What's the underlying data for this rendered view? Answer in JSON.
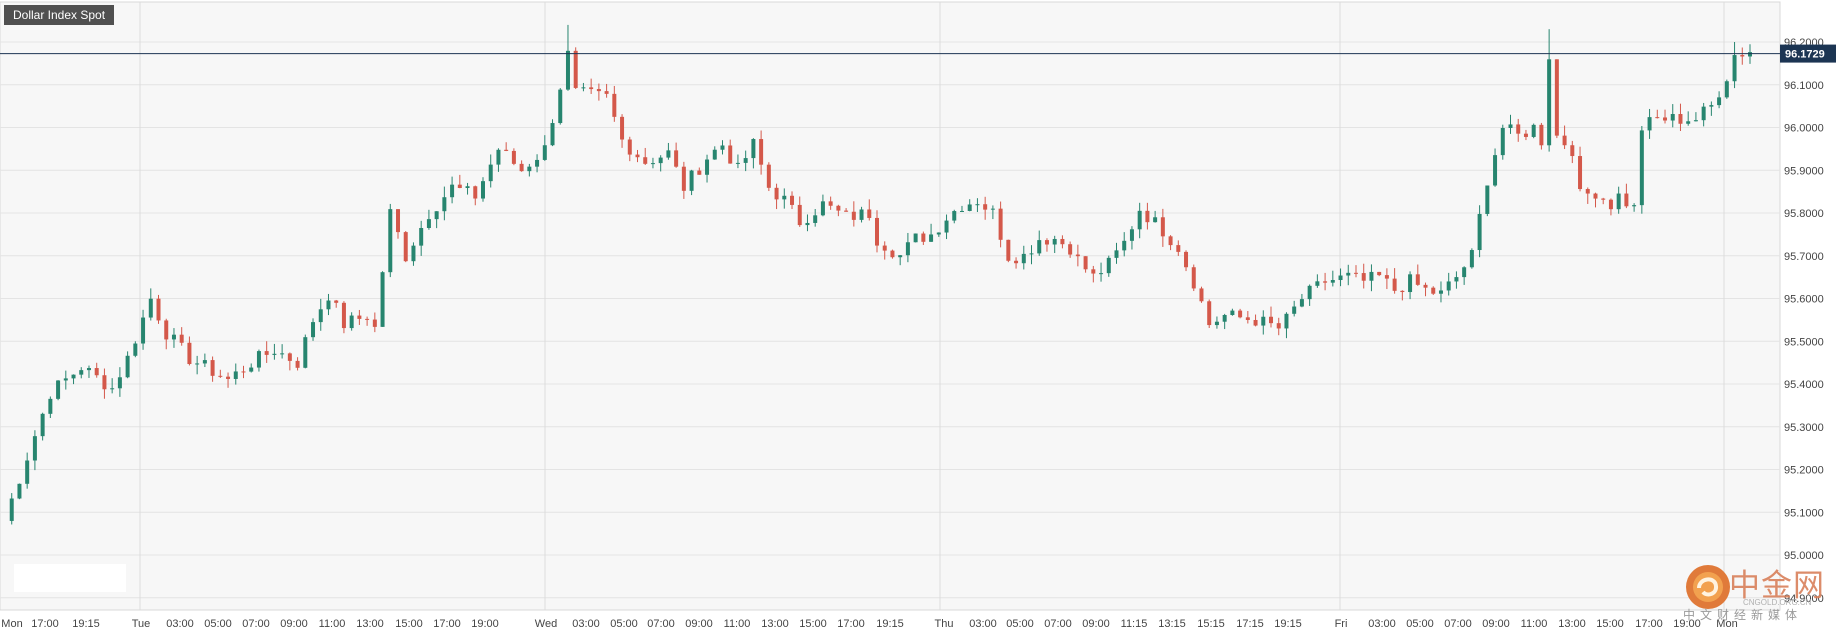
{
  "title": "Dollar Index Spot",
  "last_price_label": "96.1729",
  "watermark": {
    "name": "中金网",
    "sub": "中文财经新媒体",
    "url": "CNGOLD.ORG.CN"
  },
  "colors": {
    "up": "#27856f",
    "down": "#d4584a",
    "price_line": "#1c3553",
    "grid": "#e4e4e4",
    "plot_bg": "#f7f7f7"
  },
  "chart_data": {
    "type": "candlestick",
    "title": "Dollar Index Spot",
    "ylim": [
      94.9,
      96.25
    ],
    "yticks": [
      "96.2000",
      "96.1000",
      "96.0000",
      "95.9000",
      "95.8000",
      "95.7000",
      "95.6000",
      "95.5000",
      "95.4000",
      "95.3000",
      "95.2000",
      "95.1000",
      "95.0000",
      "94.9000"
    ],
    "last_price": 96.1729,
    "grid": true,
    "x_tick_labels": [
      "Mon",
      "17:00",
      "19:15",
      "Tue",
      "03:00",
      "05:00",
      "07:00",
      "09:00",
      "11:00",
      "13:00",
      "15:00",
      "17:00",
      "19:00",
      "Wed",
      "03:00",
      "05:00",
      "07:00",
      "09:00",
      "11:00",
      "13:00",
      "15:00",
      "17:00",
      "19:15",
      "Thu",
      "03:00",
      "05:00",
      "07:00",
      "09:00",
      "11:15",
      "13:15",
      "15:15",
      "17:15",
      "19:15",
      "Fri",
      "03:00",
      "05:00",
      "07:00",
      "09:00",
      "11:00",
      "13:00",
      "15:00",
      "17:00",
      "19:00",
      "Mon"
    ],
    "day_separators": [
      3,
      13,
      23,
      33,
      43
    ],
    "close_path": [
      [
        0,
        95.08
      ],
      [
        6,
        95.38
      ],
      [
        10,
        95.44
      ],
      [
        14,
        95.39
      ],
      [
        16,
        95.46
      ],
      [
        19,
        95.6
      ],
      [
        21,
        95.52
      ],
      [
        24,
        95.46
      ],
      [
        27,
        95.43
      ],
      [
        29,
        95.41
      ],
      [
        32,
        95.45
      ],
      [
        35,
        95.48
      ],
      [
        38,
        95.45
      ],
      [
        40,
        95.55
      ],
      [
        42,
        95.61
      ],
      [
        44,
        95.54
      ],
      [
        47,
        95.56
      ],
      [
        48,
        95.53
      ],
      [
        50,
        95.8
      ],
      [
        52,
        95.7
      ],
      [
        55,
        95.8
      ],
      [
        58,
        95.86
      ],
      [
        61,
        95.84
      ],
      [
        64,
        95.95
      ],
      [
        67,
        95.9
      ],
      [
        70,
        95.95
      ],
      [
        73,
        96.17
      ],
      [
        74,
        96.08
      ],
      [
        78,
        96.07
      ],
      [
        80,
        95.97
      ],
      [
        83,
        95.92
      ],
      [
        86,
        95.94
      ],
      [
        88,
        95.86
      ],
      [
        91,
        95.93
      ],
      [
        93,
        95.96
      ],
      [
        95,
        95.9
      ],
      [
        97,
        95.96
      ],
      [
        99,
        95.86
      ],
      [
        101,
        95.83
      ],
      [
        103,
        95.78
      ],
      [
        106,
        95.82
      ],
      [
        109,
        95.79
      ],
      [
        112,
        95.8
      ],
      [
        113,
        95.74
      ],
      [
        116,
        95.7
      ],
      [
        118,
        95.74
      ],
      [
        120,
        95.75
      ],
      [
        122,
        95.79
      ],
      [
        124,
        95.82
      ],
      [
        126,
        95.83
      ],
      [
        128,
        95.8
      ],
      [
        130,
        95.7
      ],
      [
        132,
        95.7
      ],
      [
        134,
        95.74
      ],
      [
        136,
        95.74
      ],
      [
        138,
        95.72
      ],
      [
        139,
        95.69
      ],
      [
        141,
        95.65
      ],
      [
        143,
        95.68
      ],
      [
        145,
        95.73
      ],
      [
        147,
        95.81
      ],
      [
        150,
        95.76
      ],
      [
        152,
        95.72
      ],
      [
        154,
        95.64
      ],
      [
        156,
        95.54
      ],
      [
        158,
        95.56
      ],
      [
        162,
        95.55
      ],
      [
        165,
        95.53
      ],
      [
        166,
        95.55
      ],
      [
        168,
        95.6
      ],
      [
        171,
        95.64
      ],
      [
        174,
        95.65
      ],
      [
        176,
        95.64
      ],
      [
        178,
        95.65
      ],
      [
        180,
        95.62
      ],
      [
        182,
        95.64
      ],
      [
        184,
        95.62
      ],
      [
        186,
        95.61
      ],
      [
        188,
        95.65
      ],
      [
        190,
        95.7
      ],
      [
        192,
        95.88
      ],
      [
        194,
        96.0
      ],
      [
        196,
        95.98
      ],
      [
        198,
        96.0
      ],
      [
        199,
        95.97
      ],
      [
        200,
        96.17
      ],
      [
        201,
        95.98
      ],
      [
        203,
        95.95
      ],
      [
        204,
        95.84
      ],
      [
        206,
        95.85
      ],
      [
        208,
        95.82
      ],
      [
        209,
        95.84
      ],
      [
        211,
        95.81
      ],
      [
        212,
        96.0
      ],
      [
        214,
        96.02
      ],
      [
        217,
        96.02
      ],
      [
        219,
        96.02
      ],
      [
        221,
        96.05
      ],
      [
        223,
        96.12
      ],
      [
        224,
        96.17
      ]
    ]
  }
}
